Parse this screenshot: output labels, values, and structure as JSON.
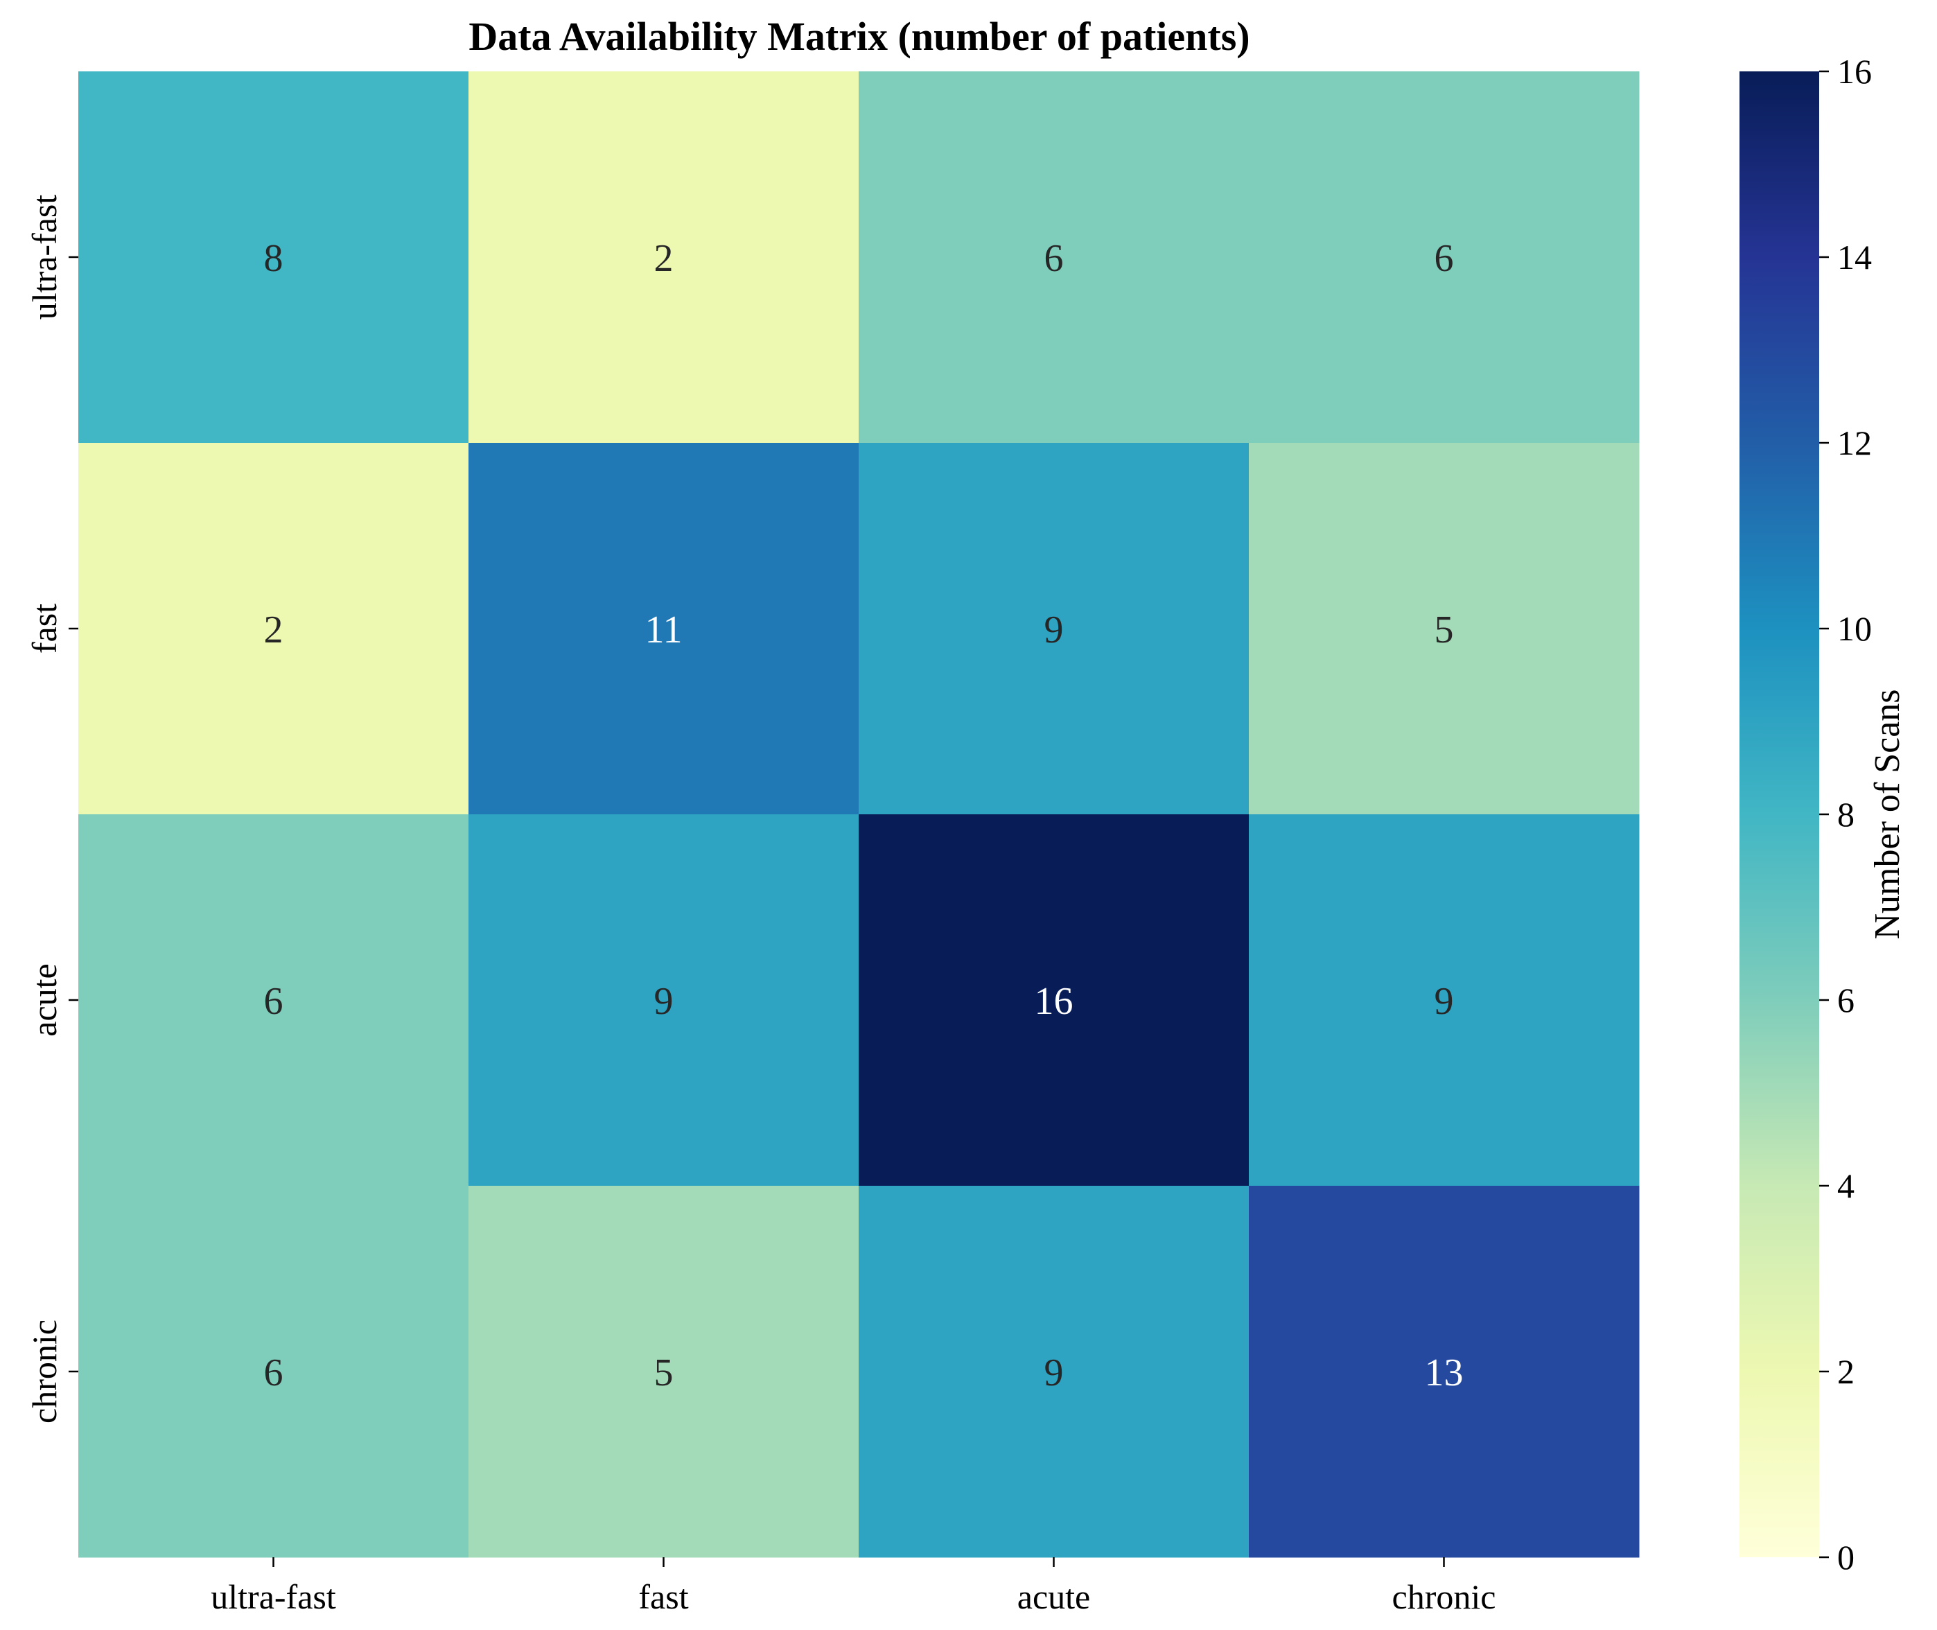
{
  "chart_data": {
    "type": "heatmap",
    "title": "Data Availability Matrix (number of patients)",
    "xlabel": "",
    "ylabel": "",
    "x_categories": [
      "ultra-fast",
      "fast",
      "acute",
      "chronic"
    ],
    "y_categories": [
      "ultra-fast",
      "fast",
      "acute",
      "chronic"
    ],
    "values": [
      [
        8,
        2,
        6,
        6
      ],
      [
        2,
        11,
        9,
        5
      ],
      [
        6,
        9,
        16,
        9
      ],
      [
        6,
        5,
        9,
        13
      ]
    ],
    "annotations": true,
    "colormap": "YlGnBu",
    "colorbar": {
      "label": "Number of Scans",
      "range": [
        0,
        16
      ],
      "ticks": [
        "0",
        "2",
        "4",
        "6",
        "8",
        "10",
        "12",
        "14",
        "16"
      ]
    },
    "grid": false
  }
}
